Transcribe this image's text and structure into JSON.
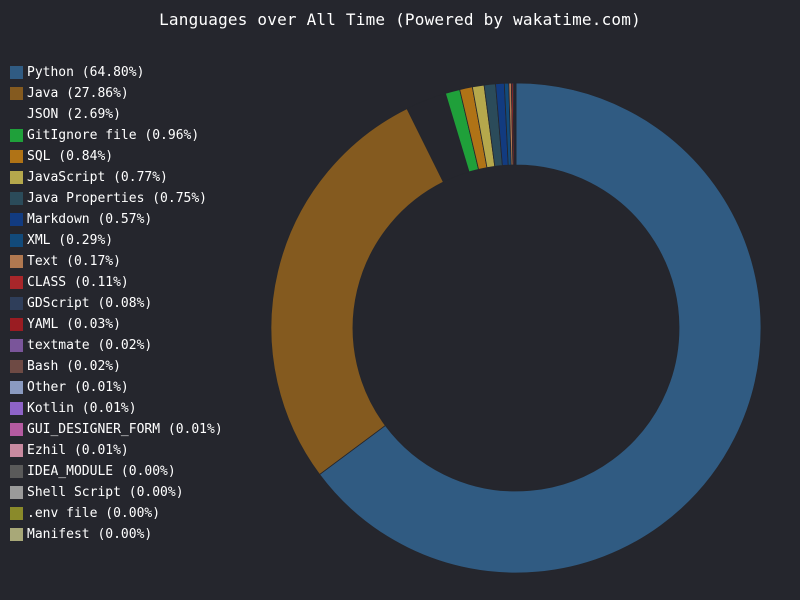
{
  "chart_data": {
    "type": "pie",
    "title": "Languages over All Time (Powered by wakatime.com)",
    "legend_position": "left",
    "slices": [
      {
        "label": "Python",
        "value": 64.8,
        "legend": "Python (64.80%)",
        "color": "#305b82"
      },
      {
        "label": "Java",
        "value": 27.86,
        "legend": "Java (27.86%)",
        "color": "#845a1f"
      },
      {
        "label": "JSON",
        "value": 2.69,
        "legend": "JSON (2.69%)",
        "color": "#25262d"
      },
      {
        "label": "GitIgnore file",
        "value": 0.96,
        "legend": "GitIgnore file (0.96%)",
        "color": "#1fa03a"
      },
      {
        "label": "SQL",
        "value": 0.84,
        "legend": "SQL (0.84%)",
        "color": "#b07316"
      },
      {
        "label": "JavaScript",
        "value": 0.77,
        "legend": "JavaScript (0.77%)",
        "color": "#b5a84c"
      },
      {
        "label": "Java Properties",
        "value": 0.75,
        "legend": "Java Properties (0.75%)",
        "color": "#2b4b5a"
      },
      {
        "label": "Markdown",
        "value": 0.57,
        "legend": "Markdown (0.57%)",
        "color": "#123b80"
      },
      {
        "label": "XML",
        "value": 0.29,
        "legend": "XML (0.29%)",
        "color": "#124a7a"
      },
      {
        "label": "Text",
        "value": 0.17,
        "legend": "Text (0.17%)",
        "color": "#b07850"
      },
      {
        "label": "CLASS",
        "value": 0.11,
        "legend": "CLASS (0.11%)",
        "color": "#a8262a"
      },
      {
        "label": "GDScript",
        "value": 0.08,
        "legend": "GDScript (0.08%)",
        "color": "#2f3e5a"
      },
      {
        "label": "YAML",
        "value": 0.03,
        "legend": "YAML (0.03%)",
        "color": "#9a1c22"
      },
      {
        "label": "textmate",
        "value": 0.02,
        "legend": "textmate (0.02%)",
        "color": "#7a559a"
      },
      {
        "label": "Bash",
        "value": 0.02,
        "legend": "Bash (0.02%)",
        "color": "#6e4a44"
      },
      {
        "label": "Other",
        "value": 0.01,
        "legend": "Other (0.01%)",
        "color": "#8a9ac0"
      },
      {
        "label": "Kotlin",
        "value": 0.01,
        "legend": "Kotlin (0.01%)",
        "color": "#8e63c8"
      },
      {
        "label": "GUI_DESIGNER_FORM",
        "value": 0.01,
        "legend": "GUI_DESIGNER_FORM (0.01%)",
        "color": "#b45aa0"
      },
      {
        "label": "Ezhil",
        "value": 0.01,
        "legend": "Ezhil (0.01%)",
        "color": "#c88aa0"
      },
      {
        "label": "IDEA_MODULE",
        "value": 0.0,
        "legend": "IDEA_MODULE (0.00%)",
        "color": "#5a5a5a"
      },
      {
        "label": "Shell Script",
        "value": 0.0,
        "legend": "Shell Script (0.00%)",
        "color": "#9a9a9a"
      },
      {
        "label": ".env file",
        "value": 0.0,
        "legend": ".env file (0.00%)",
        "color": "#8a8a2a"
      },
      {
        "label": "Manifest",
        "value": 0.0,
        "legend": "Manifest (0.00%)",
        "color": "#a8a878"
      }
    ]
  }
}
